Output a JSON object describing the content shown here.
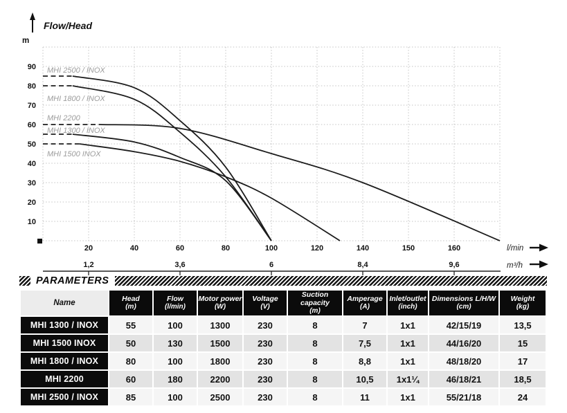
{
  "chart_data": {
    "type": "line",
    "title": "Flow/Head",
    "y_axis": {
      "unit": "m",
      "ticks": [
        10,
        20,
        30,
        40,
        50,
        60,
        70,
        80,
        90
      ],
      "range": [
        0,
        100
      ]
    },
    "x_axis_primary": {
      "unit": "l/min",
      "ticks": [
        20,
        40,
        60,
        80,
        100,
        120,
        140,
        150,
        160
      ]
    },
    "x_axis_secondary": {
      "unit": "m³/h",
      "ticks": [
        {
          "label": "1,2",
          "at": 20
        },
        {
          "label": "3,6",
          "at": 60
        },
        {
          "label": "6",
          "at": 100
        },
        {
          "label": "8,4",
          "at": 140
        },
        {
          "label": "9,6",
          "at": 160
        }
      ]
    },
    "x_plot_max": 170,
    "series": [
      {
        "name": "MHI 2500 / INOX",
        "shutoff_head_m": 85,
        "max_flow_lmin": 100,
        "dash_to": 13,
        "points": [
          [
            13,
            85
          ],
          [
            40,
            79
          ],
          [
            60,
            62
          ],
          [
            80,
            38
          ],
          [
            100,
            0
          ]
        ]
      },
      {
        "name": "MHI 1800 / INOX",
        "shutoff_head_m": 80,
        "max_flow_lmin": 100,
        "dash_to": 13,
        "points": [
          [
            13,
            80
          ],
          [
            40,
            73
          ],
          [
            60,
            56
          ],
          [
            80,
            33
          ],
          [
            100,
            0
          ]
        ]
      },
      {
        "name": "MHI 2200",
        "shutoff_head_m": 60,
        "max_flow_lmin": 180,
        "dash_to": 25,
        "points": [
          [
            25,
            60
          ],
          [
            60,
            58
          ],
          [
            100,
            45
          ],
          [
            140,
            30
          ],
          [
            170,
            0
          ]
        ]
      },
      {
        "name": "MHI 1300 / INOX",
        "shutoff_head_m": 55,
        "max_flow_lmin": 100,
        "dash_to": 13,
        "points": [
          [
            13,
            55
          ],
          [
            40,
            51
          ],
          [
            60,
            43
          ],
          [
            80,
            31
          ],
          [
            100,
            0
          ]
        ]
      },
      {
        "name": "MHI 1500 INOX",
        "shutoff_head_m": 50,
        "max_flow_lmin": 130,
        "dash_to": 16,
        "points": [
          [
            16,
            50
          ],
          [
            40,
            46
          ],
          [
            60,
            41
          ],
          [
            80,
            33
          ],
          [
            100,
            22
          ],
          [
            130,
            0
          ]
        ]
      }
    ],
    "colors": {
      "curve": "#1c1c1c",
      "grid": "#c3c3c3",
      "series_label": "#9c9c9c",
      "axis_text": "#111111"
    }
  },
  "table": {
    "title": "PARAMETERS",
    "columns": [
      {
        "label": "Name",
        "unit": ""
      },
      {
        "label": "Head",
        "unit": "(m)"
      },
      {
        "label": "Flow",
        "unit": "(l/min)"
      },
      {
        "label": "Motor power",
        "unit": "(W)"
      },
      {
        "label": "Voltage",
        "unit": "(V)"
      },
      {
        "label": "Suction capacity",
        "unit": "(m)"
      },
      {
        "label": "Amperage",
        "unit": "(A)"
      },
      {
        "label": "Inlet/outlet",
        "unit": "(inch)"
      },
      {
        "label": "Dimensions L/H/W",
        "unit": "(cm)"
      },
      {
        "label": "Weight",
        "unit": "(kg)"
      }
    ],
    "rows": [
      [
        "MHI 1300 / INOX",
        "55",
        "100",
        "1300",
        "230",
        "8",
        "7",
        "1x1",
        "42/15/19",
        "13,5"
      ],
      [
        "MHI 1500 INOX",
        "50",
        "130",
        "1500",
        "230",
        "8",
        "7,5",
        "1x1",
        "44/16/20",
        "15"
      ],
      [
        "MHI 1800 / INOX",
        "80",
        "100",
        "1800",
        "230",
        "8",
        "8,8",
        "1x1",
        "48/18/20",
        "17"
      ],
      [
        "MHI 2200",
        "60",
        "180",
        "2200",
        "230",
        "8",
        "10,5",
        "1x1¼",
        "46/18/21",
        "18,5"
      ],
      [
        "MHI 2500 / INOX",
        "85",
        "100",
        "2500",
        "230",
        "8",
        "11",
        "1x1",
        "55/21/18",
        "24"
      ]
    ]
  }
}
